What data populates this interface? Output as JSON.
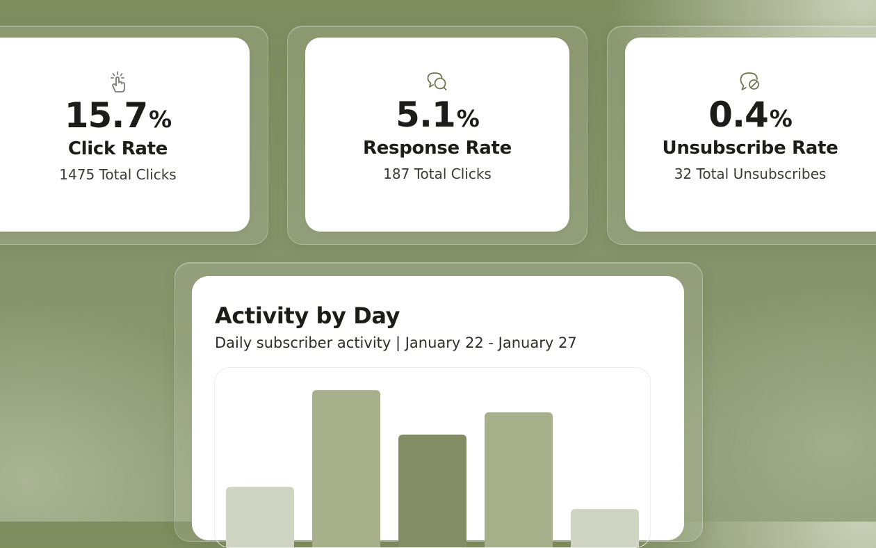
{
  "colors": {
    "background": "#86936a",
    "card": "#ffffff",
    "text_primary": "#1c1c1a",
    "bar_light": "#d0d4c3",
    "bar_mid": "#a8b08b",
    "bar_dark": "#848e66",
    "icon_click": "#7a7a78",
    "icon_olive": "#6f7650"
  },
  "stats": [
    {
      "icon": "pointer-click-icon",
      "value": "15.7",
      "unit": "%",
      "label": "Click Rate",
      "sub": "1475 Total Clicks"
    },
    {
      "icon": "chat-bubbles-icon",
      "value": "5.1",
      "unit": "%",
      "label": "Response Rate",
      "sub": "187 Total Clicks"
    },
    {
      "icon": "chat-blocked-icon",
      "value": "0.4",
      "unit": "%",
      "label": "Unsubscribe Rate",
      "sub": "32 Total Unsubscribes"
    }
  ],
  "activity": {
    "title": "Activity by Day",
    "subtitle": "Daily subscriber activity | January 22 - January 27"
  },
  "chart_data": {
    "type": "bar",
    "title": "Activity by Day",
    "subtitle": "Daily subscriber activity | January 22 - January 27",
    "xlabel": "",
    "ylabel": "",
    "grid": false,
    "values": [
      0.39,
      1.0,
      0.72,
      0.86,
      0.25
    ],
    "colors": [
      "#d0d4c3",
      "#a8b08b",
      "#848e66",
      "#a8b08b",
      "#d0d4c3"
    ],
    "note_partial": true
  }
}
